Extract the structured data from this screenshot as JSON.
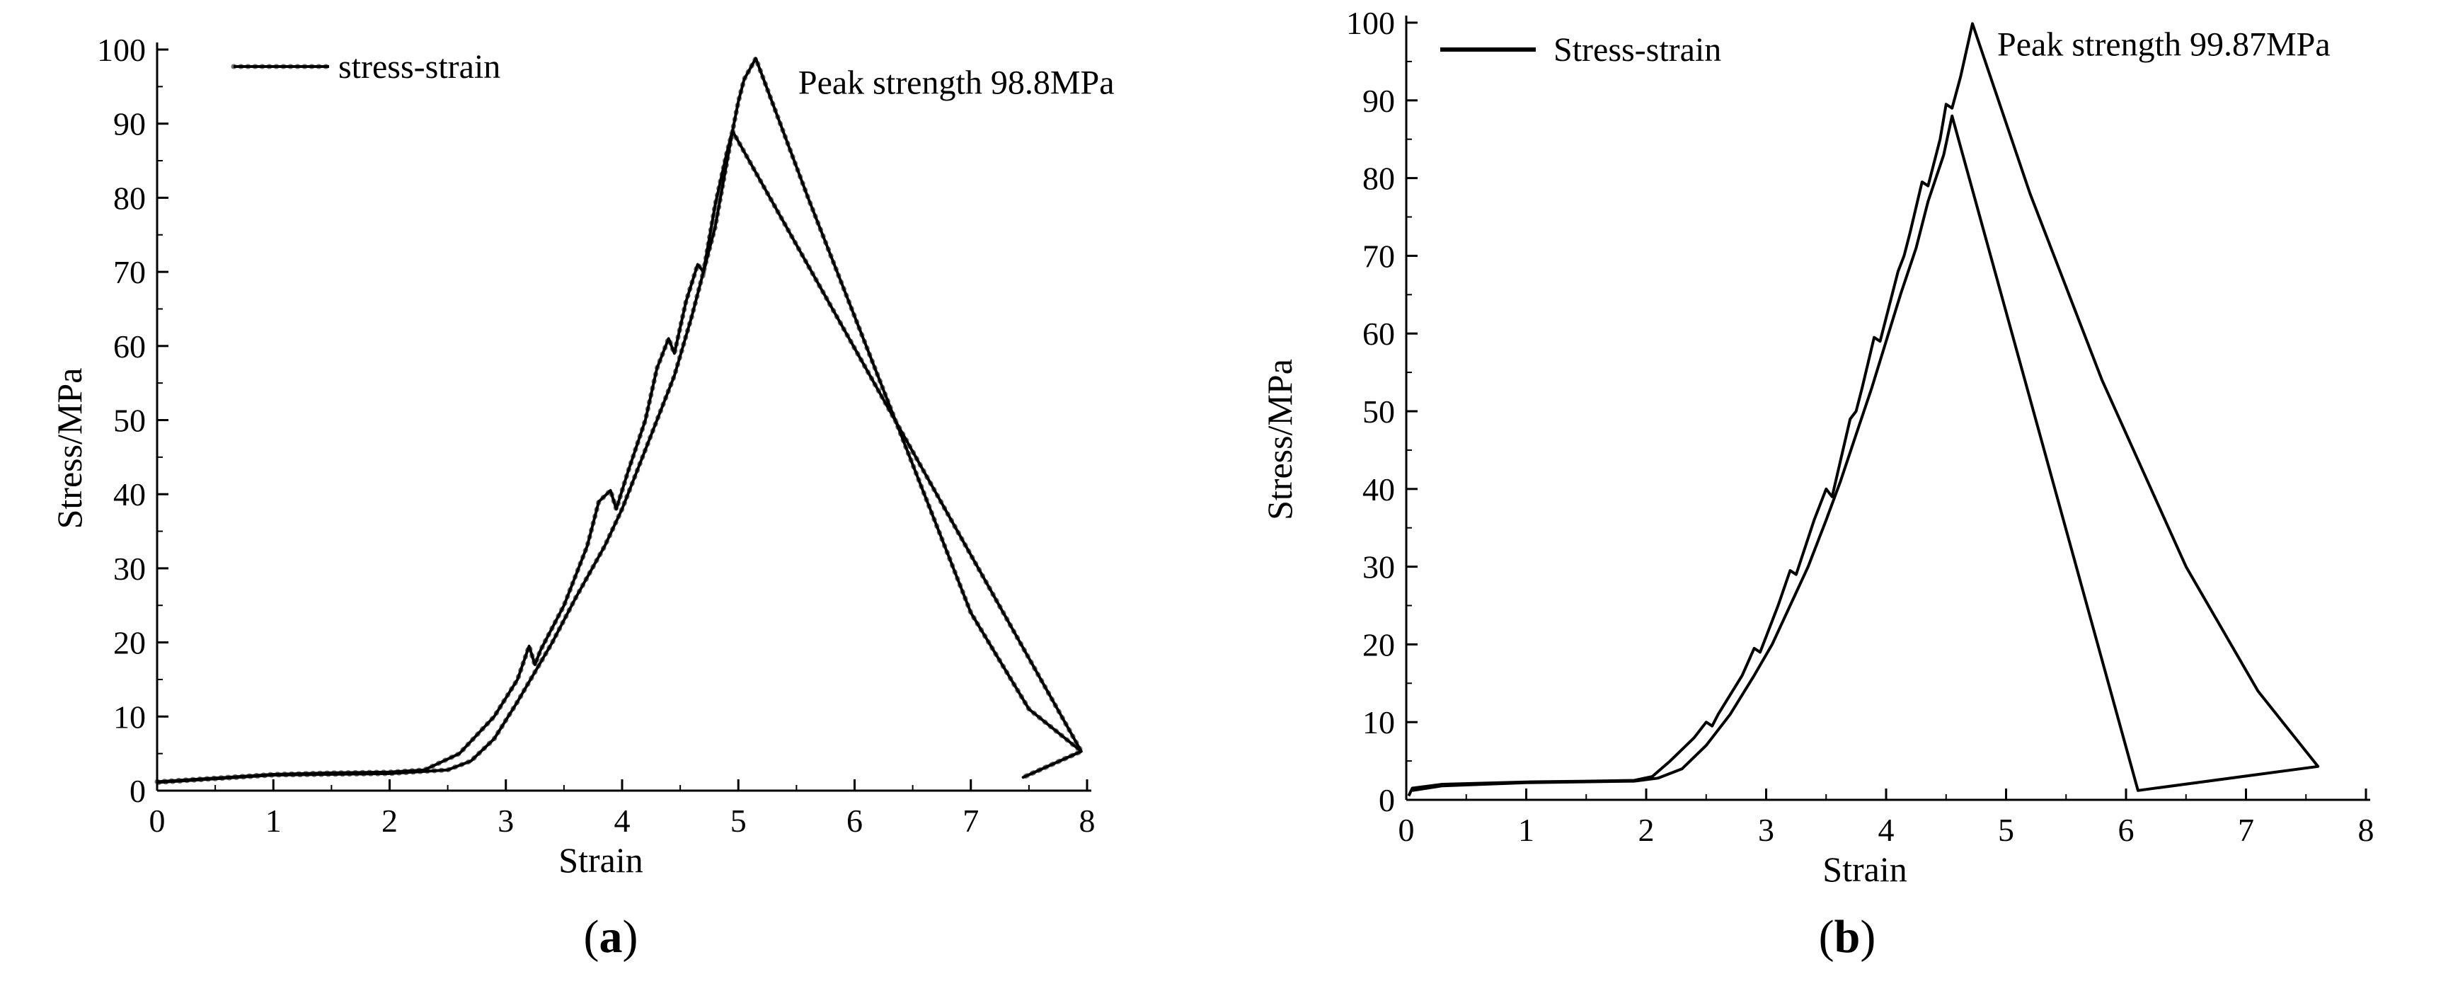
{
  "chart_data": [
    {
      "type": "line",
      "panel_label": "a",
      "xlabel": "Strain",
      "ylabel": "Stress/MPa",
      "xlim": [
        0,
        8
      ],
      "ylim": [
        0,
        100
      ],
      "xticks": [
        0,
        1,
        2,
        3,
        4,
        5,
        6,
        7,
        8
      ],
      "yticks": [
        0,
        10,
        20,
        30,
        40,
        50,
        60,
        70,
        80,
        90,
        100
      ],
      "legend": {
        "label": "stress-strain",
        "placement": "top-left",
        "marker": "dots"
      },
      "annotations": [
        {
          "text": "Peak strength 98.8MPa",
          "x": 5.15,
          "y": 98.8
        }
      ],
      "series": [
        {
          "name": "stress-strain",
          "points": [
            [
              0,
              1.2
            ],
            [
              0.3,
              1.5
            ],
            [
              0.6,
              1.8
            ],
            [
              1,
              2.2
            ],
            [
              1.5,
              2.4
            ],
            [
              2,
              2.5
            ],
            [
              2.3,
              2.8
            ],
            [
              2.6,
              5
            ],
            [
              2.9,
              10
            ],
            [
              3.1,
              15
            ],
            [
              3.2,
              19.5
            ],
            [
              3.25,
              17
            ],
            [
              3.3,
              19
            ],
            [
              3.5,
              25
            ],
            [
              3.7,
              33
            ],
            [
              3.8,
              39
            ],
            [
              3.9,
              40.5
            ],
            [
              3.95,
              38
            ],
            [
              4.05,
              43
            ],
            [
              4.2,
              50
            ],
            [
              4.3,
              57
            ],
            [
              4.4,
              61
            ],
            [
              4.45,
              59
            ],
            [
              4.55,
              66
            ],
            [
              4.65,
              71
            ],
            [
              4.7,
              70
            ],
            [
              4.8,
              79
            ],
            [
              4.9,
              86
            ],
            [
              4.95,
              89
            ],
            [
              5.0,
              93
            ],
            [
              5.05,
              96
            ],
            [
              5.15,
              98.8
            ],
            [
              5.6,
              80
            ],
            [
              6,
              64
            ],
            [
              6.5,
              44
            ],
            [
              7,
              24
            ],
            [
              7.5,
              11
            ],
            [
              7.95,
              5.3
            ],
            [
              7.45,
              1.8
            ],
            [
              7.45,
              1.8
            ],
            [
              7.95,
              5.3
            ],
            [
              4.95,
              89
            ],
            [
              4.8,
              76
            ],
            [
              4.6,
              64
            ],
            [
              4.45,
              56
            ],
            [
              4.35,
              52
            ],
            [
              4.2,
              46
            ],
            [
              4.0,
              38
            ],
            [
              3.85,
              33
            ],
            [
              3.6,
              26
            ],
            [
              3.4,
              20
            ],
            [
              3.25,
              16
            ],
            [
              3.1,
              12
            ],
            [
              2.9,
              7
            ],
            [
              2.7,
              4
            ],
            [
              2.5,
              2.8
            ],
            [
              2.0,
              2.3
            ],
            [
              1.0,
              2.1
            ],
            [
              0.5,
              1.6
            ],
            [
              0,
              1.1
            ]
          ]
        }
      ]
    },
    {
      "type": "line",
      "panel_label": "b",
      "xlabel": "Strain",
      "ylabel": "Stress/MPa",
      "xlim": [
        0,
        8
      ],
      "ylim": [
        0,
        100
      ],
      "xticks": [
        0,
        1,
        2,
        3,
        4,
        5,
        6,
        7,
        8
      ],
      "yticks": [
        0,
        10,
        20,
        30,
        40,
        50,
        60,
        70,
        80,
        90,
        100
      ],
      "legend": {
        "label": "Stress-strain",
        "placement": "top-left",
        "marker": "line"
      },
      "annotations": [
        {
          "text": "Peak strength 99.87MPa",
          "x": 4.72,
          "y": 99.87
        }
      ],
      "series": [
        {
          "name": "Stress-strain",
          "points": [
            [
              0.02,
              0.5
            ],
            [
              0.05,
              1.5
            ],
            [
              0.3,
              2
            ],
            [
              1,
              2.3
            ],
            [
              1.5,
              2.4
            ],
            [
              1.9,
              2.5
            ],
            [
              2.05,
              3
            ],
            [
              2.2,
              5
            ],
            [
              2.4,
              8
            ],
            [
              2.5,
              10
            ],
            [
              2.55,
              9.5
            ],
            [
              2.6,
              11
            ],
            [
              2.8,
              16
            ],
            [
              2.9,
              19.5
            ],
            [
              2.95,
              19
            ],
            [
              3.1,
              25
            ],
            [
              3.2,
              29.5
            ],
            [
              3.25,
              29
            ],
            [
              3.4,
              36
            ],
            [
              3.5,
              40
            ],
            [
              3.55,
              39
            ],
            [
              3.7,
              49
            ],
            [
              3.75,
              50
            ],
            [
              3.8,
              53
            ],
            [
              3.9,
              59.5
            ],
            [
              3.95,
              59
            ],
            [
              4.1,
              68
            ],
            [
              4.15,
              70
            ],
            [
              4.2,
              73
            ],
            [
              4.3,
              79.5
            ],
            [
              4.35,
              79
            ],
            [
              4.45,
              85
            ],
            [
              4.5,
              89.5
            ],
            [
              4.55,
              89
            ],
            [
              4.62,
              93
            ],
            [
              4.72,
              99.87
            ],
            [
              5.2,
              78
            ],
            [
              5.8,
              54
            ],
            [
              6.5,
              30
            ],
            [
              7.1,
              14
            ],
            [
              7.6,
              4.3
            ],
            [
              6.1,
              1.2
            ],
            [
              4.55,
              88
            ],
            [
              4.48,
              83
            ],
            [
              4.35,
              77
            ],
            [
              4.25,
              71
            ],
            [
              4.12,
              65
            ],
            [
              4.0,
              59
            ],
            [
              3.88,
              53
            ],
            [
              3.75,
              47
            ],
            [
              3.62,
              41
            ],
            [
              3.5,
              36
            ],
            [
              3.35,
              30
            ],
            [
              3.2,
              25
            ],
            [
              3.05,
              20
            ],
            [
              2.9,
              16
            ],
            [
              2.7,
              11
            ],
            [
              2.5,
              7
            ],
            [
              2.3,
              4
            ],
            [
              2.1,
              2.8
            ],
            [
              1.9,
              2.4
            ],
            [
              1.0,
              2.2
            ],
            [
              0.3,
              1.8
            ],
            [
              0.05,
              1.2
            ]
          ]
        }
      ]
    }
  ]
}
